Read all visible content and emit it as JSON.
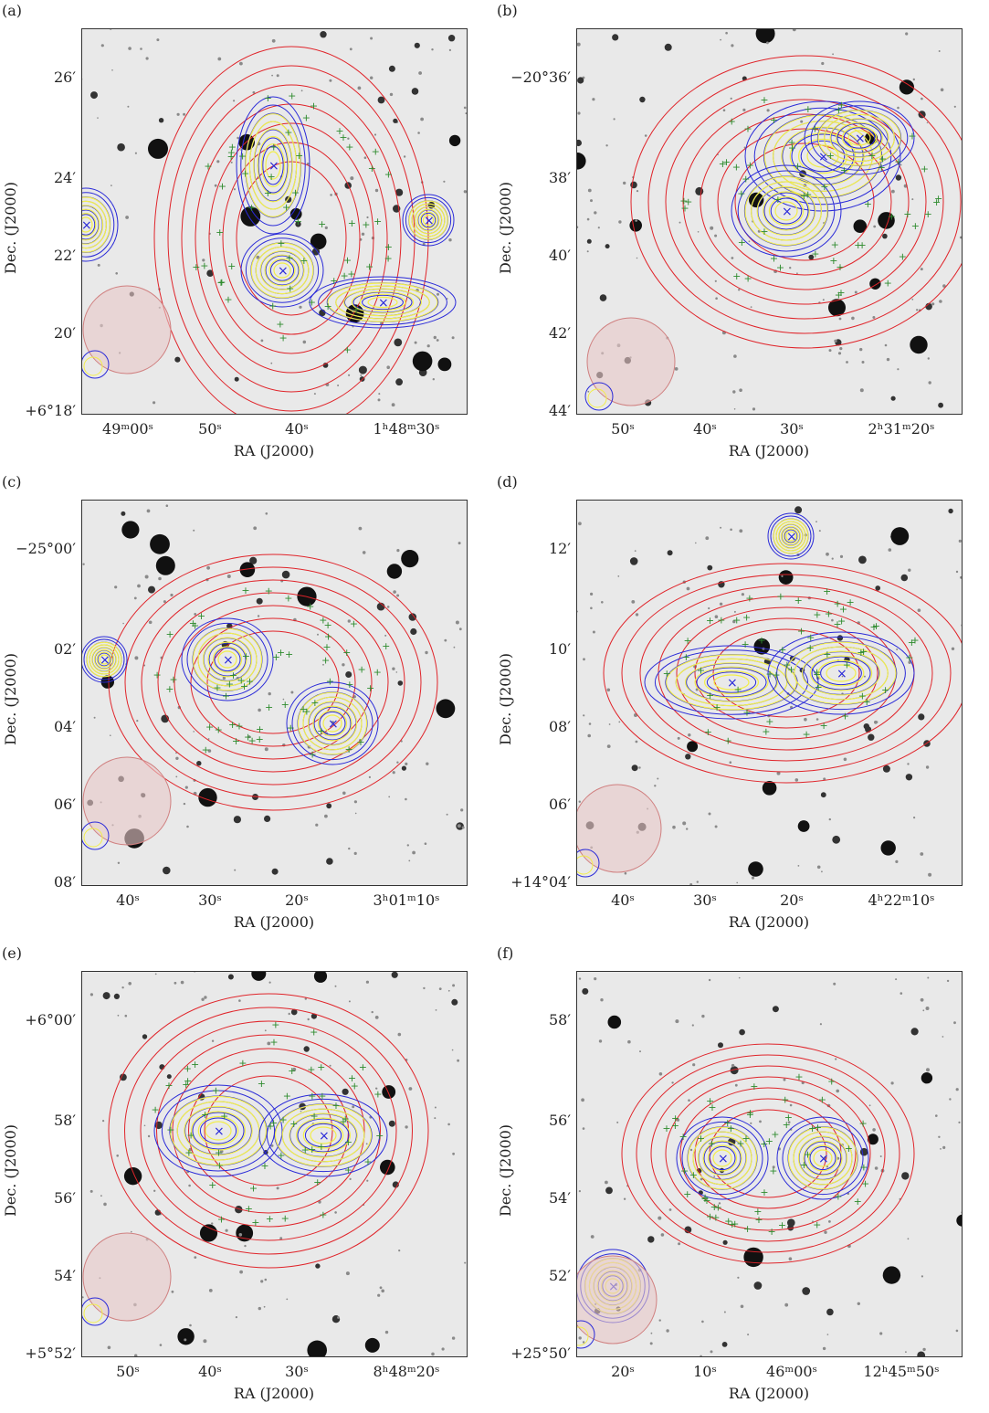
{
  "figure": {
    "panels": [
      {
        "label": "(a)",
        "xlabel": "RA (J2000)",
        "ylabel": "Dec. (J2000)",
        "yticks": [
          "26′",
          "24′",
          "22′",
          "20′",
          "+6°18′"
        ],
        "xticks": [
          "49ᵐ00ˢ",
          "50ˢ",
          "40ˢ",
          "1ʰ48ᵐ30ˢ"
        ]
      },
      {
        "label": "(b)",
        "xlabel": "RA (J2000)",
        "ylabel": "Dec. (J2000)",
        "yticks": [
          "−20°36′",
          "38′",
          "40′",
          "42′",
          "44′"
        ],
        "xticks": [
          "50ˢ",
          "40ˢ",
          "30ˢ",
          "2ʰ31ᵐ20ˢ"
        ]
      },
      {
        "label": "(c)",
        "xlabel": "RA (J2000)",
        "ylabel": "Dec. (J2000)",
        "yticks": [
          "−25°00′",
          "02′",
          "04′",
          "06′",
          "08′"
        ],
        "xticks": [
          "40ˢ",
          "30ˢ",
          "20ˢ",
          "3ʰ01ᵐ10ˢ"
        ]
      },
      {
        "label": "(d)",
        "xlabel": "RA (J2000)",
        "ylabel": "Dec. (J2000)",
        "yticks": [
          "12′",
          "10′",
          "08′",
          "06′",
          "+14°04′"
        ],
        "xticks": [
          "40ˢ",
          "30ˢ",
          "20ˢ",
          "4ʰ22ᵐ10ˢ"
        ]
      },
      {
        "label": "(e)",
        "xlabel": "RA (J2000)",
        "ylabel": "Dec. (J2000)",
        "yticks": [
          "+6°00′",
          "58′",
          "56′",
          "54′",
          "+5°52′"
        ],
        "xticks": [
          "50ˢ",
          "40ˢ",
          "30ˢ",
          "8ʰ48ᵐ20ˢ"
        ]
      },
      {
        "label": "(f)",
        "xlabel": "RA (J2000)",
        "ylabel": "Dec. (J2000)",
        "yticks": [
          "58′",
          "56′",
          "54′",
          "52′",
          "+25°50′"
        ],
        "xticks": [
          "20ˢ",
          "10ˢ",
          "46ᵐ00ˢ",
          "12ʰ45ᵐ50ˢ"
        ]
      }
    ],
    "colors": {
      "red_contour": "#e0242a",
      "blue_contour": "#2a2ad8",
      "yellow_contour": "#f2ee4a",
      "green_marker": "#2e8b2e",
      "beam_fill": "#e8c8c8"
    }
  }
}
